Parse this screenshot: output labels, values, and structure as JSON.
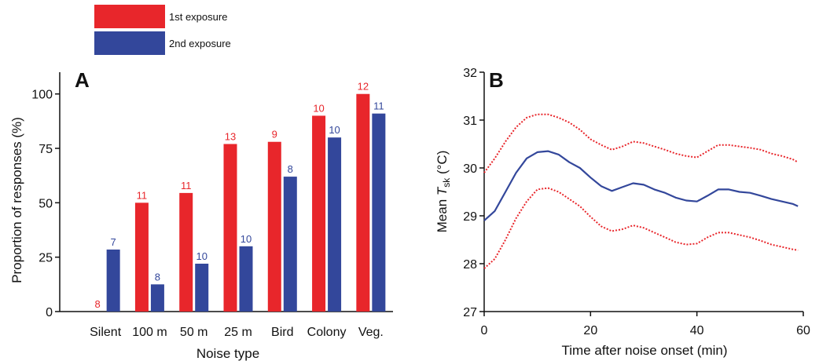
{
  "legend": {
    "items": [
      {
        "label": "1st exposure",
        "color": "#e8262b"
      },
      {
        "label": "2nd exposure",
        "color": "#33479b"
      }
    ]
  },
  "colors": {
    "red": "#e8262b",
    "blue": "#33479b",
    "dotted": "#e8262b",
    "axis": "#111111"
  },
  "chart_data": [
    {
      "panel": "A",
      "type": "bar",
      "xlabel": "Noise type",
      "ylabel": "Proportion of responses (%)",
      "ylim": [
        0,
        110
      ],
      "yticks": [
        0,
        25,
        50,
        75,
        100
      ],
      "categories": [
        "Silent",
        "100 m",
        "50 m",
        "25 m",
        "Bird",
        "Colony",
        "Veg."
      ],
      "series": [
        {
          "values": [
            0,
            50,
            54.5,
            77,
            78,
            90,
            100
          ],
          "counts": [
            "8",
            "11",
            "11",
            "13",
            "9",
            "10",
            "12"
          ]
        },
        {
          "values": [
            28.5,
            12.5,
            22,
            30,
            62,
            80,
            91
          ],
          "counts": [
            "7",
            "8",
            "10",
            "10",
            "8",
            "10",
            "11"
          ]
        }
      ],
      "grid": false
    },
    {
      "panel": "B",
      "type": "line",
      "xlabel": "Time after noise onset (min)",
      "ylabel_prefix": "Mean ",
      "ylabel_var": "T",
      "ylabel_sub": "sk",
      "ylabel_suffix": " (°C)",
      "xlim": [
        0,
        60
      ],
      "ylim": [
        27,
        32
      ],
      "xticks": [
        0,
        20,
        40,
        60
      ],
      "yticks": [
        27,
        28,
        29,
        30,
        31,
        32
      ],
      "x": [
        0,
        2,
        4,
        6,
        8,
        10,
        12,
        14,
        16,
        18,
        20,
        22,
        24,
        26,
        28,
        30,
        32,
        34,
        36,
        38,
        40,
        42,
        44,
        46,
        48,
        50,
        52,
        54,
        56,
        58,
        59
      ],
      "series": [
        {
          "style": "solid",
          "values": [
            28.9,
            29.1,
            29.5,
            29.9,
            30.2,
            30.33,
            30.35,
            30.28,
            30.12,
            30.0,
            29.8,
            29.62,
            29.52,
            29.6,
            29.68,
            29.65,
            29.55,
            29.48,
            29.38,
            29.32,
            29.3,
            29.42,
            29.55,
            29.55,
            29.5,
            29.48,
            29.42,
            29.35,
            29.3,
            29.25,
            29.2
          ]
        },
        {
          "style": "dotted",
          "values": [
            29.9,
            30.2,
            30.55,
            30.85,
            31.05,
            31.12,
            31.12,
            31.05,
            30.95,
            30.8,
            30.6,
            30.48,
            30.38,
            30.45,
            30.55,
            30.52,
            30.45,
            30.38,
            30.3,
            30.25,
            30.22,
            30.35,
            30.48,
            30.48,
            30.45,
            30.42,
            30.38,
            30.3,
            30.25,
            30.18,
            30.12
          ]
        },
        {
          "style": "dotted",
          "values": [
            27.9,
            28.1,
            28.5,
            28.95,
            29.3,
            29.55,
            29.58,
            29.5,
            29.35,
            29.2,
            28.98,
            28.78,
            28.68,
            28.72,
            28.8,
            28.75,
            28.65,
            28.55,
            28.45,
            28.4,
            28.42,
            28.55,
            28.65,
            28.65,
            28.6,
            28.55,
            28.48,
            28.4,
            28.35,
            28.3,
            28.28
          ]
        }
      ]
    }
  ]
}
